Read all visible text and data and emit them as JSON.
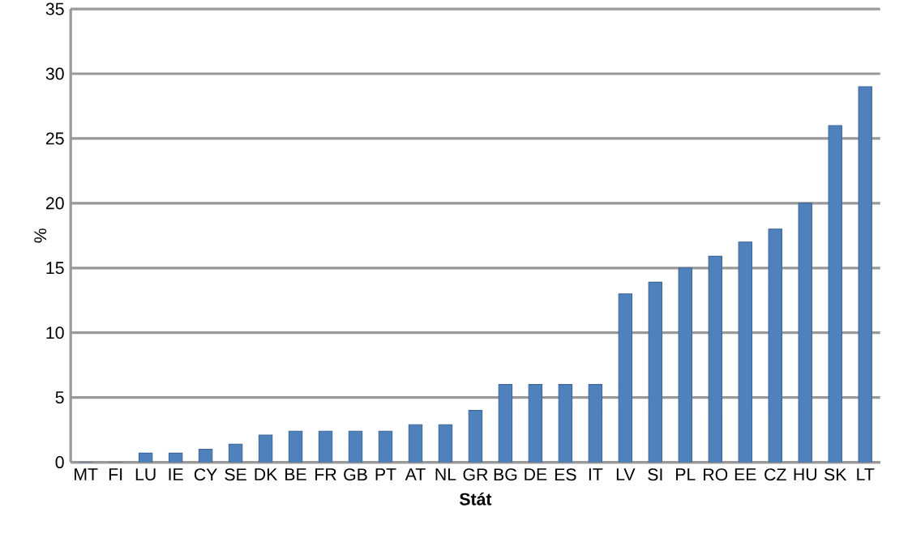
{
  "chart_data": {
    "type": "bar",
    "xlabel": "Stát",
    "ylabel": "%",
    "categories": [
      "MT",
      "FI",
      "LU",
      "IE",
      "CY",
      "SE",
      "DK",
      "BE",
      "FR",
      "GB",
      "PT",
      "AT",
      "NL",
      "GR",
      "BG",
      "DE",
      "ES",
      "IT",
      "LV",
      "SI",
      "PL",
      "RO",
      "EE",
      "CZ",
      "HU",
      "SK",
      "LT"
    ],
    "values": [
      0,
      0,
      0.7,
      0.7,
      1.0,
      1.4,
      2.1,
      2.4,
      2.4,
      2.4,
      2.4,
      2.9,
      2.9,
      4.0,
      6,
      6,
      6,
      6,
      13,
      13.9,
      15,
      15.9,
      17,
      18,
      20,
      26,
      29
    ],
    "color": "#4f81bd",
    "ylim": [
      0,
      35
    ],
    "yticks": [
      0,
      5,
      10,
      15,
      20,
      25,
      30,
      35
    ],
    "grid": "y"
  }
}
